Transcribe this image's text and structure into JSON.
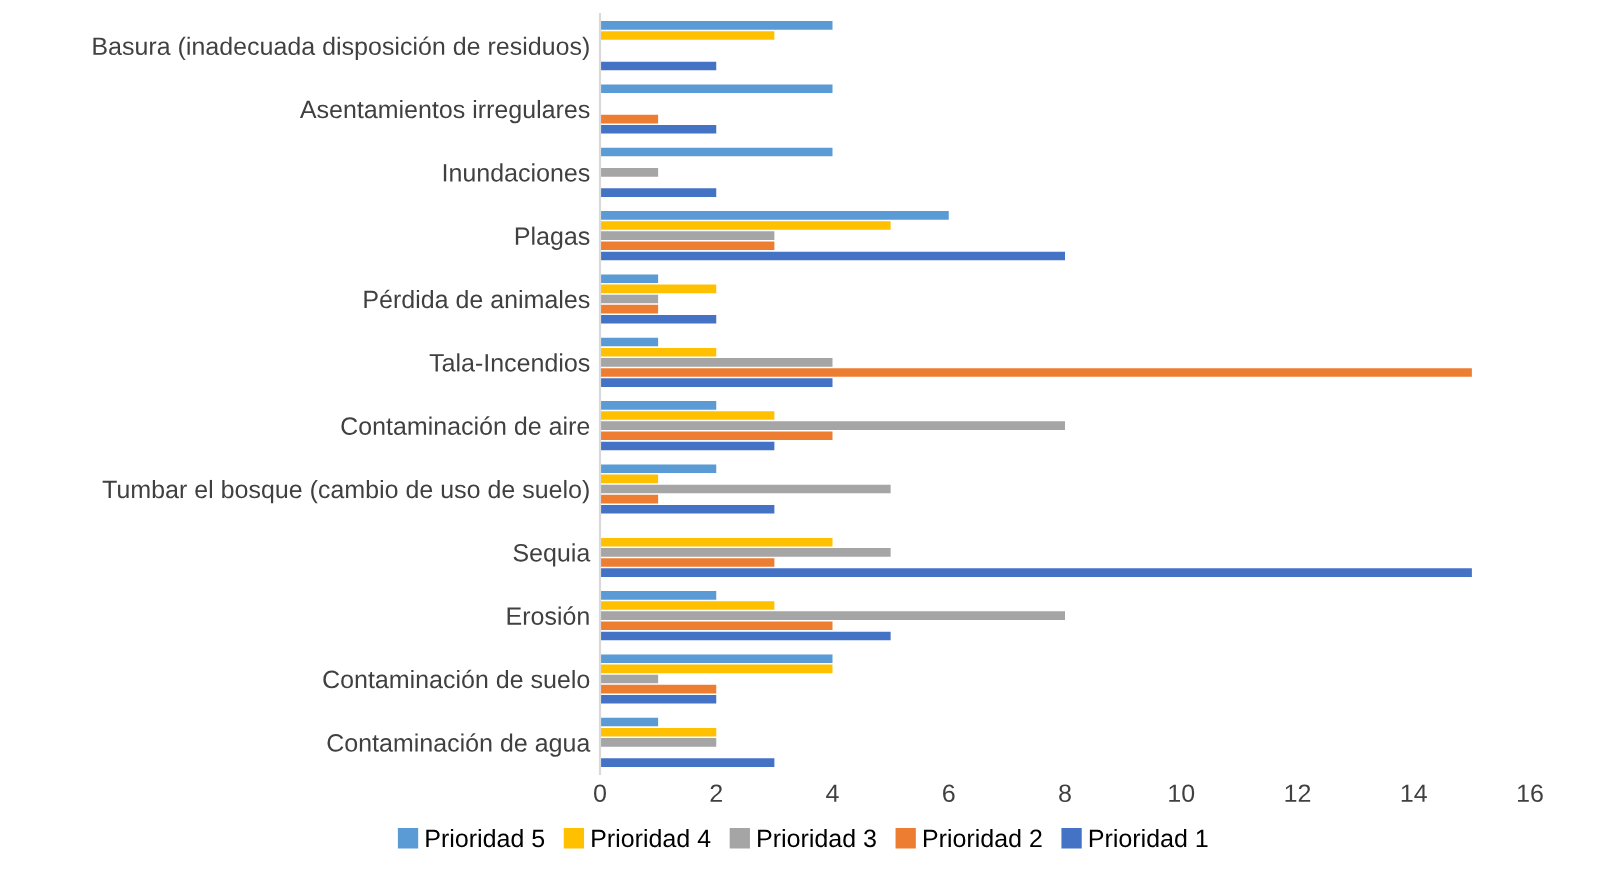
{
  "chart_data": {
    "type": "bar",
    "orientation": "horizontal",
    "categories": [
      "Basura (inadecuada disposición de residuos)",
      "Asentamientos irregulares",
      "Inundaciones",
      "Plagas",
      "Pérdida de animales",
      "Tala-Incendios",
      "Contaminación de aire",
      "Tumbar el bosque (cambio de uso de suelo)",
      "Sequia",
      "Erosión",
      "Contaminación de suelo",
      "Contaminación de agua"
    ],
    "series": [
      {
        "name": "Prioridad 5",
        "color": "#5b9bd5",
        "values": [
          4,
          4,
          4,
          6,
          1,
          1,
          2,
          2,
          0,
          2,
          4,
          1
        ]
      },
      {
        "name": "Prioridad 4",
        "color": "#ffc000",
        "values": [
          3,
          0,
          0,
          5,
          2,
          2,
          3,
          1,
          4,
          3,
          4,
          2
        ]
      },
      {
        "name": "Prioridad 3",
        "color": "#a5a5a5",
        "values": [
          0,
          0,
          1,
          3,
          1,
          4,
          8,
          5,
          5,
          8,
          1,
          2
        ]
      },
      {
        "name": "Prioridad 2",
        "color": "#ed7d31",
        "values": [
          0,
          1,
          0,
          3,
          1,
          15,
          4,
          1,
          3,
          4,
          2,
          0
        ]
      },
      {
        "name": "Prioridad 1",
        "color": "#4472c4",
        "values": [
          2,
          2,
          2,
          8,
          2,
          4,
          3,
          3,
          15,
          5,
          2,
          3
        ]
      }
    ],
    "xlim": [
      0,
      16
    ],
    "xticks": [
      0,
      2,
      4,
      6,
      8,
      10,
      12,
      14,
      16
    ],
    "grid": false,
    "legend": "bottom"
  }
}
